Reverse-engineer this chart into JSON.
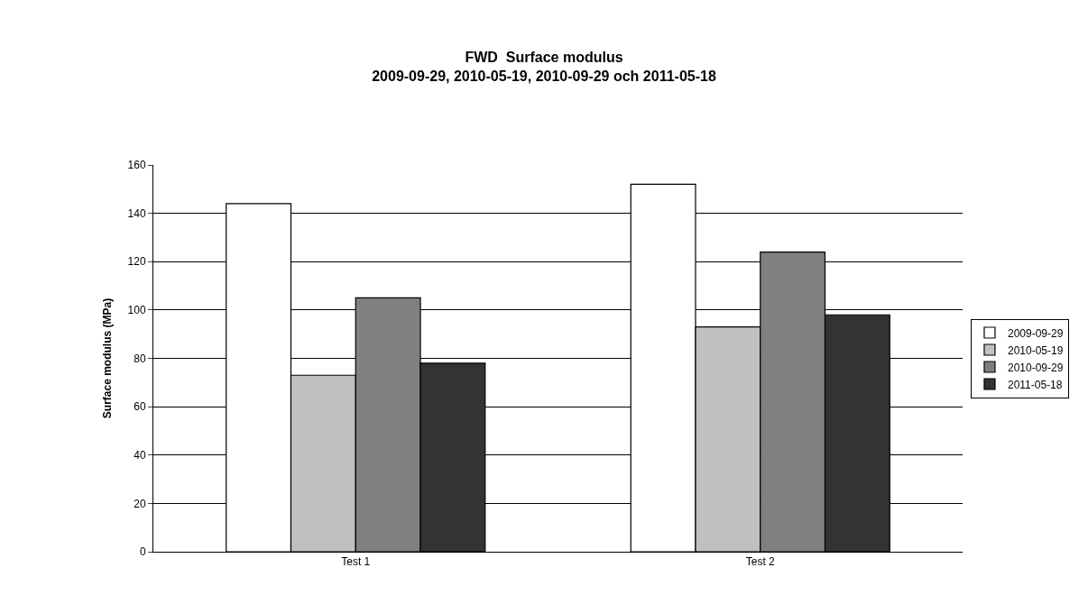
{
  "chart_data": {
    "type": "bar",
    "title": "FWD  Surface modulus\n2009-09-29, 2010-05-19, 2010-09-29 och 2011-05-18",
    "ylabel": "Surface modulus (MPa)",
    "categories": [
      "Test 1",
      "Test 2"
    ],
    "series": [
      {
        "name": "2009-09-29",
        "color": "#ffffff",
        "values": [
          144,
          152
        ]
      },
      {
        "name": "2010-05-19",
        "color": "#c0c0c0",
        "values": [
          73,
          93
        ]
      },
      {
        "name": "2010-09-29",
        "color": "#808080",
        "values": [
          105,
          124
        ]
      },
      {
        "name": "2011-05-18",
        "color": "#333333",
        "values": [
          78,
          98
        ]
      }
    ],
    "ylim": [
      0,
      160
    ],
    "yticks": [
      0,
      20,
      40,
      60,
      80,
      100,
      120,
      140,
      160
    ],
    "grid": "y",
    "legend": "right"
  }
}
